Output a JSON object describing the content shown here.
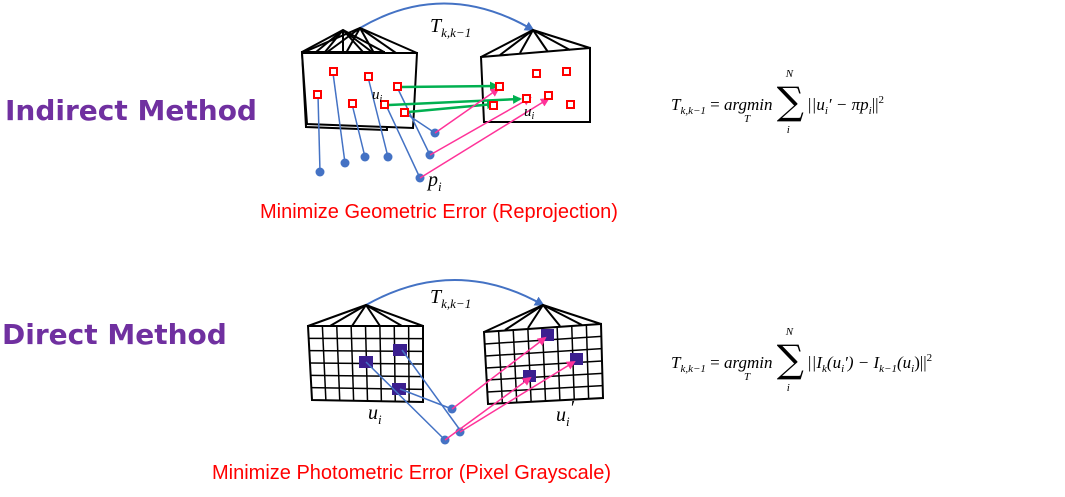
{
  "indirect": {
    "label": "Indirect Method",
    "caption": "Minimize Geometric Error (Reprojection)",
    "transform_base": "T",
    "transform_sub": "k,k−1",
    "point_u_base": "u",
    "point_u_sub": "i",
    "point_u2_base": "u",
    "point_u2_sub": "i",
    "point_p_base": "p",
    "point_p_sub": "i",
    "equation": {
      "lhs_base": "T",
      "lhs_sub": "k,k−1",
      "eq": " = ",
      "op": "argmin",
      "op_under": "T",
      "sum_top": "N",
      "sum_bottom": "i",
      "sigma": "∑",
      "body": "||u",
      "body_sub": "i",
      "body_rest": "′ − πp",
      "body_sub2": "i",
      "body_end": "||",
      "power": "2"
    }
  },
  "direct": {
    "label": "Direct Method",
    "caption": "Minimize Photometric Error (Pixel Grayscale)",
    "transform_base": "T",
    "transform_sub": "k,k−1",
    "point_u_base": "u",
    "point_u_sub": "i",
    "point_u2_base": "u",
    "point_u2_sub": "i",
    "point_u2_prime": "′",
    "equation": {
      "lhs_base": "T",
      "lhs_sub": "k,k−1",
      "eq": " = ",
      "op": "argmin",
      "op_under": "T",
      "sum_top": "N",
      "sum_bottom": "i",
      "sigma": "∑",
      "body_a": "||I",
      "body_a_sub": "k",
      "body_b": "(u",
      "body_b_sub": "i",
      "body_c": "′) − I",
      "body_c_sub": "k−1",
      "body_d": "(u",
      "body_d_sub": "i",
      "body_e": ")||",
      "power": "2"
    }
  },
  "colors": {
    "label": "#7030a0",
    "caption": "#ff0000",
    "arc": "#4472c4",
    "point": "#4472c4",
    "feature": "#ff0000",
    "match": "#00b050",
    "projection": "#ff3399",
    "pixel_fill": "#3b1f8f"
  }
}
